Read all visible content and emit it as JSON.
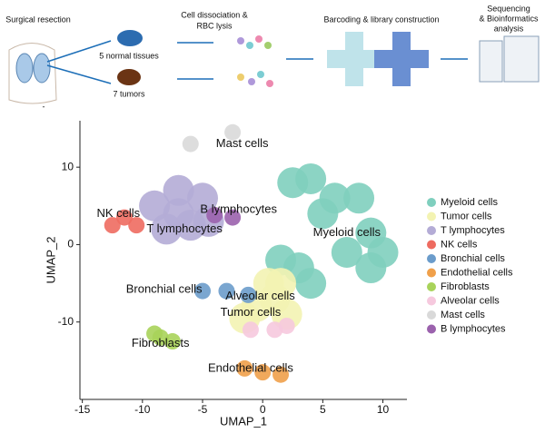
{
  "workflow": {
    "steps": [
      {
        "lines": [
          "Surgical resection"
        ]
      },
      {
        "lines": [
          "5 normal tissues"
        ]
      },
      {
        "lines": [
          "7 tumors"
        ]
      },
      {
        "lines": [
          "Cell dissociation &",
          "RBC lysis"
        ]
      },
      {
        "lines": [
          "Barcoding & library construction"
        ]
      },
      {
        "lines": [
          "Sequencing",
          "& Bioinformatics",
          "analysis"
        ]
      }
    ],
    "note": "-"
  },
  "chart_data": {
    "type": "scatter",
    "xlabel": "UMAP_1",
    "ylabel": "UMAP_2",
    "xlim": [
      -15.2,
      12
    ],
    "ylim": [
      -20,
      16
    ],
    "xticks": [
      -15,
      -10,
      -5,
      0,
      5,
      10
    ],
    "yticks": [
      -10,
      0,
      10
    ],
    "legend": "right",
    "series": [
      {
        "name": "Myeloid cells",
        "color": "#7fcfbe",
        "x": [
          9,
          7,
          10,
          5,
          3,
          9,
          2.5,
          4,
          8,
          4,
          6,
          1.5
        ],
        "y": [
          1.5,
          -1,
          -1,
          4,
          -3,
          -3,
          8,
          8.5,
          6,
          -5,
          6,
          -2
        ]
      },
      {
        "name": "Tumor cells",
        "color": "#f3f3b2",
        "x": [
          1,
          2,
          -0.5,
          0.5,
          1.5,
          -1.5
        ],
        "y": [
          -7,
          -9,
          -8,
          -5,
          -5,
          -9.5
        ]
      },
      {
        "name": "T lymphocytes",
        "color": "#b4acd6",
        "x": [
          -7,
          -9,
          -5,
          -7,
          -8,
          -6,
          -4.5
        ],
        "y": [
          4,
          5,
          6,
          7,
          2,
          2.5,
          3
        ]
      },
      {
        "name": "NK cells",
        "color": "#ee6b60",
        "x": [
          -11.5,
          -12.5,
          -10.5
        ],
        "y": [
          3.5,
          2.5,
          2.5
        ]
      },
      {
        "name": "Bronchial cells",
        "color": "#6b9ccb",
        "x": [
          -5,
          -3,
          -1.2
        ],
        "y": [
          -6,
          -6,
          -6.5
        ]
      },
      {
        "name": "Endothelial cells",
        "color": "#f0a04a",
        "x": [
          0,
          -1.5,
          1.5
        ],
        "y": [
          -16.5,
          -16,
          -16.8
        ]
      },
      {
        "name": "Fibroblasts",
        "color": "#a8d35a",
        "x": [
          -8.5,
          -7.5,
          -9
        ],
        "y": [
          -12,
          -12.5,
          -11.5
        ]
      },
      {
        "name": "Alveolar cells",
        "color": "#f6c9de",
        "x": [
          -1,
          1,
          2
        ],
        "y": [
          -11,
          -11,
          -10.5
        ]
      },
      {
        "name": "Mast  cells",
        "color": "#d9d9d9",
        "x": [
          -2.5,
          -6
        ],
        "y": [
          14.5,
          13
        ]
      },
      {
        "name": "B lymphocytes",
        "color": "#9b62ad",
        "x": [
          -4,
          -2.5
        ],
        "y": [
          3.8,
          3.5
        ]
      }
    ],
    "annotations": [
      {
        "text": "Mast cells",
        "x": -1.7,
        "y": 13
      },
      {
        "text": "B lymphocytes",
        "x": -2,
        "y": 4.5
      },
      {
        "text": "NK cells",
        "x": -12,
        "y": 4
      },
      {
        "text": "T lymphocytes",
        "x": -6.5,
        "y": 2
      },
      {
        "text": "Myeloid cells",
        "x": 7,
        "y": 1.5
      },
      {
        "text": "Bronchial cells",
        "x": -8.2,
        "y": -5.8
      },
      {
        "text": "Alveolar cells",
        "x": -0.2,
        "y": -6.7
      },
      {
        "text": "Tumor cells",
        "x": -1,
        "y": -8.8
      },
      {
        "text": "Fibroblasts",
        "x": -8.5,
        "y": -12.8
      },
      {
        "text": "Endothelial cells",
        "x": -1,
        "y": -16
      }
    ]
  }
}
